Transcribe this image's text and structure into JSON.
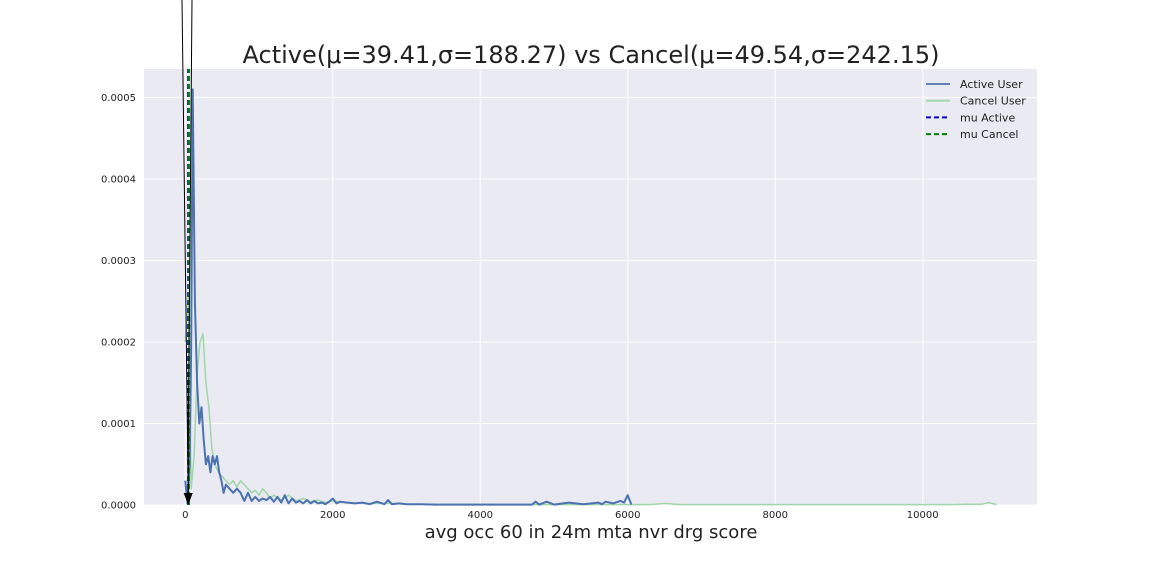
{
  "chart_data": {
    "type": "line",
    "title": "Active(μ=39.41,σ=188.27) vs Cancel(μ=49.54,σ=242.15)",
    "xlabel": "avg occ 60 in 24m mta nvr drg score",
    "ylabel": "",
    "xlim": [
      -560,
      11550
    ],
    "ylim": [
      0,
      0.000535
    ],
    "xticks": [
      0,
      2000,
      4000,
      6000,
      8000,
      10000
    ],
    "xtick_labels": [
      "0",
      "2000",
      "4000",
      "6000",
      "8000",
      "10000"
    ],
    "yticks": [
      0,
      0.0001,
      0.0002,
      0.0003,
      0.0004,
      0.0005
    ],
    "ytick_labels": [
      "0.0000",
      "0.0001",
      "0.0002",
      "0.0003",
      "0.0004",
      "0.0005"
    ],
    "grid": true,
    "legend_position": "top-right",
    "legend": [
      "Active User",
      "Cancel User",
      "mu Active",
      "mu Cancel"
    ],
    "series": [
      {
        "name": "Active User",
        "color": "#4c72b0",
        "x": [
          0,
          30,
          60,
          80,
          100,
          130,
          160,
          190,
          220,
          250,
          280,
          310,
          340,
          370,
          400,
          430,
          460,
          490,
          520,
          550,
          600,
          650,
          700,
          750,
          800,
          850,
          900,
          950,
          1000,
          1050,
          1100,
          1150,
          1200,
          1250,
          1300,
          1350,
          1400,
          1450,
          1500,
          1550,
          1600,
          1650,
          1700,
          1750,
          1800,
          1850,
          1900,
          1950,
          2000,
          2050,
          2100,
          2200,
          2300,
          2400,
          2500,
          2600,
          2700,
          2750,
          2800,
          2900,
          3000,
          3100,
          3200,
          3400,
          3600,
          3800,
          4000,
          4200,
          4400,
          4600,
          4700,
          4750,
          4800,
          4900,
          5000,
          5200,
          5400,
          5600,
          5650,
          5700,
          5800,
          5900,
          5950,
          6000,
          6050
        ],
        "values": [
          3e-05,
          2e-06,
          5e-05,
          0.0002,
          0.00051,
          0.00025,
          0.00015,
          0.0001,
          0.00012,
          8e-05,
          5e-05,
          6e-05,
          4e-05,
          6e-05,
          5e-05,
          6e-05,
          4e-05,
          3e-05,
          1.5e-05,
          2.5e-05,
          2e-05,
          1.5e-05,
          2e-05,
          1.5e-05,
          5e-06,
          1.5e-05,
          5e-06,
          1e-05,
          5e-06,
          8e-06,
          6e-06,
          1e-05,
          4e-06,
          1e-05,
          3e-06,
          1.2e-05,
          2e-06,
          8e-06,
          3e-06,
          5e-06,
          2e-06,
          6e-06,
          2e-06,
          5e-06,
          2e-06,
          3e-06,
          1e-06,
          4e-06,
          8e-06,
          2e-06,
          4e-06,
          3e-06,
          2e-06,
          3e-06,
          1e-06,
          4e-06,
          1e-06,
          6e-06,
          1e-06,
          2e-06,
          1e-06,
          1e-06,
          1e-06,
          5e-07,
          5e-07,
          5e-07,
          5e-07,
          5e-07,
          5e-07,
          5e-07,
          5e-07,
          4e-06,
          5e-07,
          4e-06,
          5e-07,
          3e-06,
          1e-06,
          3e-06,
          1e-06,
          4e-06,
          2e-06,
          5e-06,
          3e-06,
          1.2e-05,
          5e-07
        ]
      },
      {
        "name": "Cancel User",
        "color": "#a1d6a8",
        "x": [
          0,
          40,
          80,
          120,
          160,
          200,
          240,
          280,
          320,
          360,
          400,
          450,
          500,
          550,
          600,
          650,
          700,
          750,
          800,
          850,
          900,
          950,
          1000,
          1050,
          1100,
          1150,
          1200,
          1300,
          1400,
          1500,
          1600,
          1700,
          1800,
          1900,
          2000,
          2200,
          2400,
          2600,
          2800,
          3000,
          3500,
          4000,
          4500,
          5000,
          5500,
          6000,
          6300,
          6500,
          6700,
          7000,
          7500,
          8000,
          8500,
          9000,
          9500,
          10000,
          10400,
          10600,
          10800,
          10900,
          11000
        ],
        "values": [
          0.0002,
          0.00026,
          2e-05,
          6e-05,
          0.00016,
          0.0002,
          0.00021,
          0.00015,
          0.00012,
          7e-05,
          5e-05,
          4e-05,
          3.5e-05,
          3e-05,
          2.5e-05,
          3e-05,
          2.2e-05,
          3e-05,
          2.5e-05,
          2e-05,
          1.5e-05,
          1.8e-05,
          1.2e-05,
          2e-05,
          1.5e-05,
          8e-06,
          1.2e-05,
          6e-06,
          1.2e-05,
          5e-06,
          8e-06,
          4e-06,
          6e-06,
          3e-06,
          5e-06,
          3e-06,
          2e-06,
          2e-06,
          2e-06,
          1e-06,
          1e-06,
          1e-06,
          5e-07,
          5e-07,
          5e-07,
          5e-07,
          5e-07,
          2e-06,
          5e-07,
          5e-07,
          5e-07,
          5e-07,
          5e-07,
          5e-07,
          5e-07,
          5e-07,
          5e-07,
          1e-06,
          1e-06,
          3e-06,
          5e-07
        ]
      }
    ],
    "vlines": [
      {
        "name": "mu Active",
        "x": 39.41,
        "color": "#0000cc",
        "style": "dashed"
      },
      {
        "name": "mu Cancel",
        "x": 49.54,
        "color": "#008000",
        "style": "dashed"
      }
    ],
    "arrow": {
      "x": 39.41,
      "y": 0
    }
  }
}
